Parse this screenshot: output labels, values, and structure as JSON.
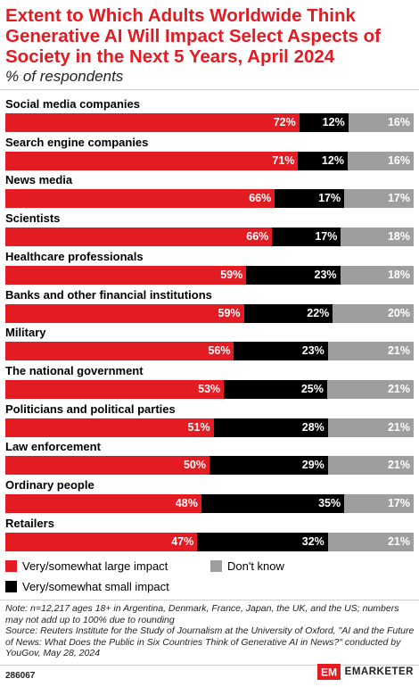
{
  "header": {
    "title": "Extent to Which Adults Worldwide Think Generative AI Will Impact Select Aspects of Society in the Next 5 Years, April 2024",
    "subtitle": "% of respondents"
  },
  "chart_data": {
    "type": "bar",
    "orientation": "horizontal",
    "stacked": true,
    "title": "Extent to Which Adults Worldwide Think Generative AI Will Impact Select Aspects of Society in the Next 5 Years, April 2024",
    "subtitle": "% of respondents",
    "categories": [
      "Social media companies",
      "Search engine companies",
      "News media",
      "Scientists",
      "Healthcare professionals",
      "Banks and other financial institutions",
      "Military",
      "The national government",
      "Politicians and political parties",
      "Law enforcement",
      "Ordinary people",
      "Retailers"
    ],
    "series": [
      {
        "name": "Very/somewhat large impact",
        "color": "#e31b23",
        "values": [
          72,
          71,
          66,
          66,
          59,
          59,
          56,
          53,
          51,
          50,
          48,
          47
        ]
      },
      {
        "name": "Very/somewhat small impact",
        "color": "#000000",
        "values": [
          12,
          12,
          17,
          17,
          23,
          22,
          23,
          25,
          28,
          29,
          35,
          32
        ]
      },
      {
        "name": "Don't know",
        "color": "#9e9e9e",
        "values": [
          16,
          16,
          17,
          18,
          18,
          20,
          21,
          21,
          21,
          21,
          17,
          21
        ]
      }
    ],
    "value_suffix": "%",
    "legend_position": "bottom",
    "grid": false
  },
  "legend": {
    "large": "Very/somewhat large impact",
    "small": "Very/somewhat small impact",
    "dontknow": "Don't know"
  },
  "notes": {
    "note": "Note: n=12,217 ages 18+ in Argentina, Denmark, France, Japan, the UK, and the US; numbers may not add up to 100% due to rounding",
    "source": "Source: Reuters Institute for the Study of Journalism at the University of Oxford, \"AI and the Future of News: What Does the Public in Six Countries Think of Generative AI in News?\" conducted by YouGov, May 28, 2024"
  },
  "footer": {
    "id": "286067",
    "brand_mark": "EM",
    "brand": "EMARKETER"
  }
}
